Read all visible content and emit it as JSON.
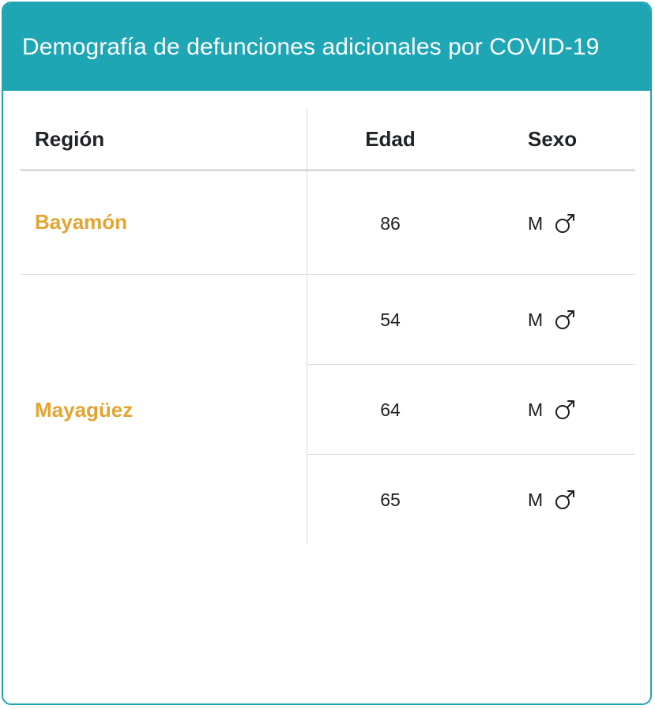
{
  "card": {
    "title": "Demografía de defunciones adicionales por COVID-19"
  },
  "table": {
    "headers": {
      "region": "Región",
      "age": "Edad",
      "sex": "Sexo"
    },
    "groups": [
      {
        "region": "Bayamón",
        "rows": [
          {
            "age": "86",
            "sex": "M",
            "sex_icon": "male-icon"
          }
        ]
      },
      {
        "region": "Mayagüez",
        "rows": [
          {
            "age": "54",
            "sex": "M",
            "sex_icon": "male-icon"
          },
          {
            "age": "64",
            "sex": "M",
            "sex_icon": "male-icon"
          },
          {
            "age": "65",
            "sex": "M",
            "sex_icon": "male-icon"
          }
        ]
      }
    ]
  },
  "colors": {
    "header_background": "#1ea6b4",
    "region_text": "#e3a431",
    "divider": "#d9d9d9"
  }
}
